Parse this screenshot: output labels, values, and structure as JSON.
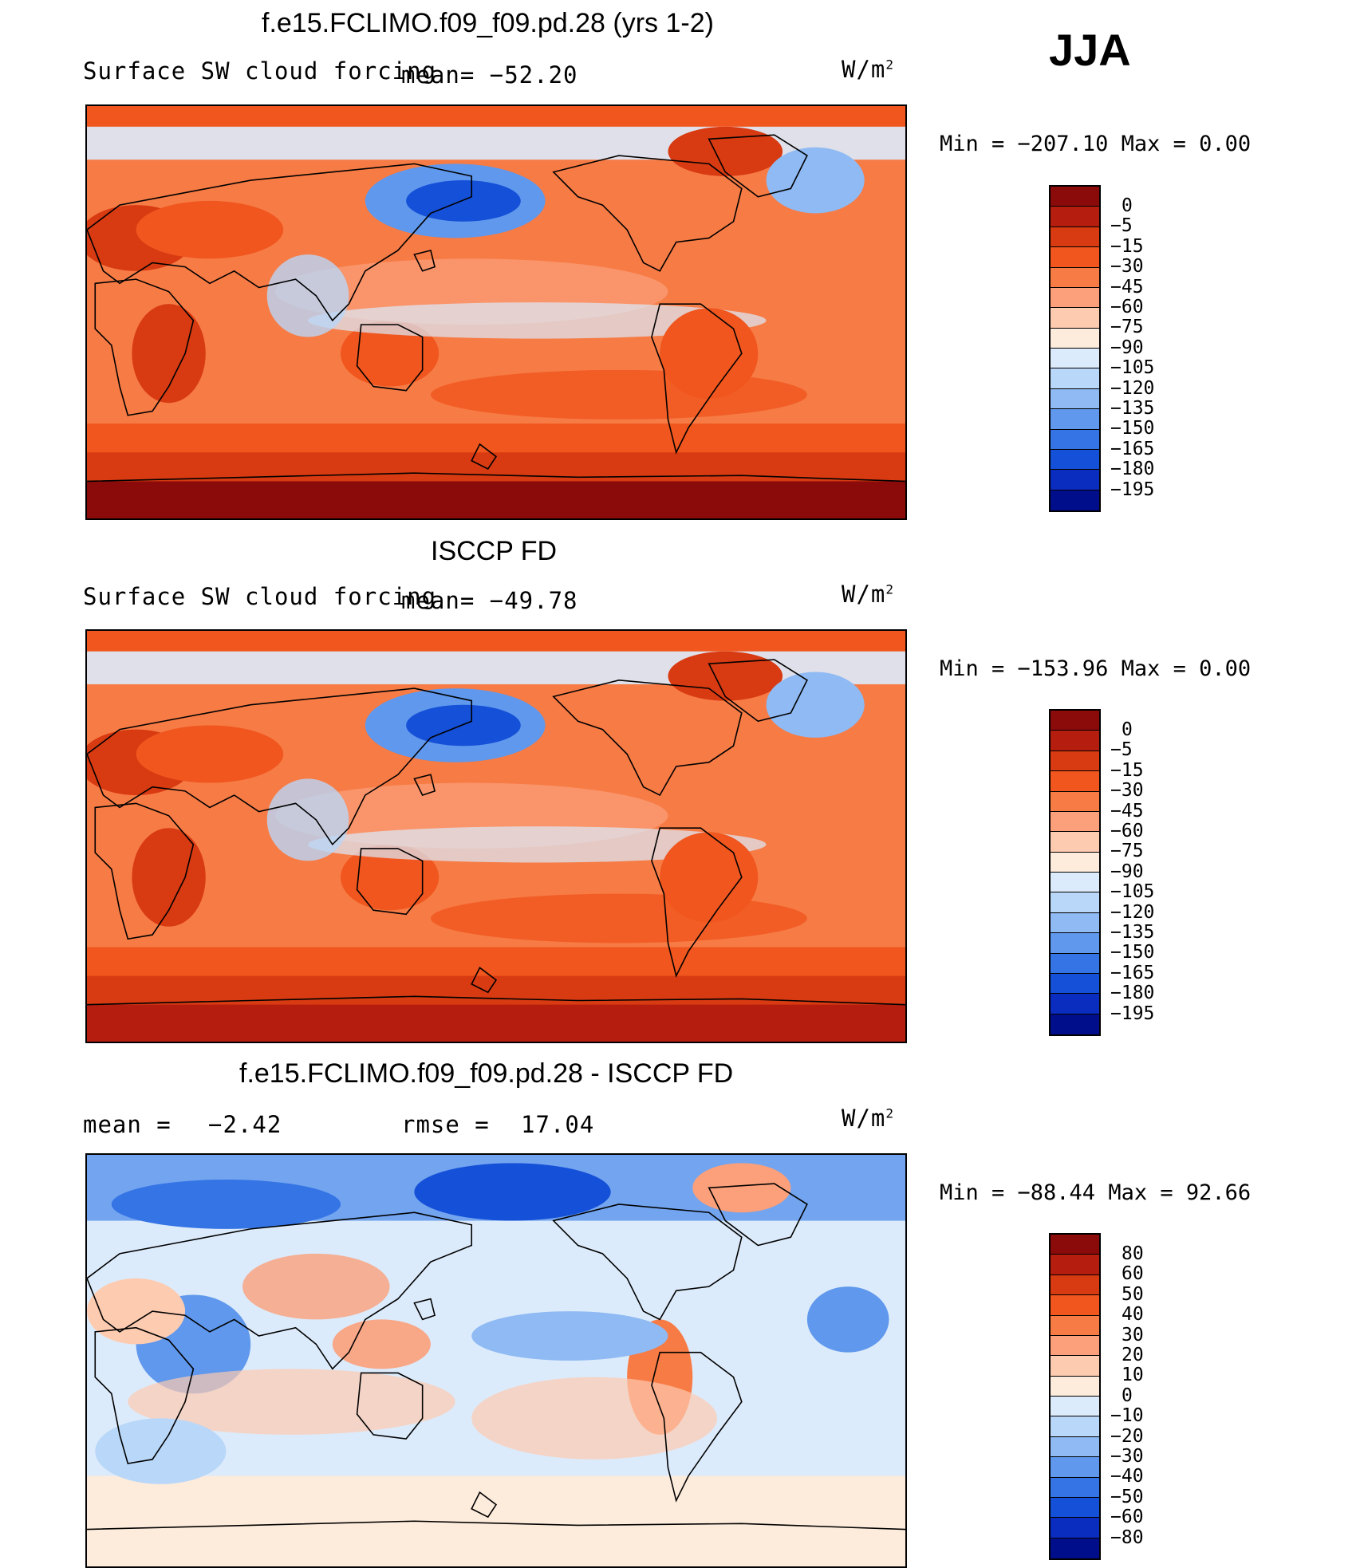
{
  "season": "JJA",
  "units": "W/m",
  "units_exp": "2",
  "panels": [
    {
      "title": "f.e15.FCLIMO.f09_f09.pd.28 (yrs 1-2)",
      "variable": "Surface SW cloud forcing",
      "mean_text": "mean= −52.20",
      "minmax": "Min = −207.10 Max =   0.00"
    },
    {
      "title": "ISCCP FD",
      "variable": "Surface SW cloud forcing",
      "mean_text": "mean= −49.78",
      "minmax": "Min = −153.96 Max =   0.00"
    },
    {
      "title": "f.e15.FCLIMO.f09_f09.pd.28 - ISCCP FD",
      "mean_label": "mean =",
      "mean_value": "−2.42",
      "rmse_label": "rmse =",
      "rmse_value": "17.04",
      "minmax": "Min = −88.44 Max =  92.66"
    }
  ],
  "chart_data": [
    {
      "type": "heatmap",
      "title": "f.e15.FCLIMO.f09_f09.pd.28 (yrs 1-2)",
      "subtitle": "Surface SW cloud forcing",
      "mean": -52.2,
      "min": -207.1,
      "max": 0.0,
      "contour_levels": [
        "0",
        "−5",
        "−15",
        "−30",
        "−45",
        "−60",
        "−75",
        "−90",
        "−105",
        "−120",
        "−135",
        "−150",
        "−165",
        "−180",
        "−195"
      ],
      "colors": [
        "#8b0a0a",
        "#b51d0e",
        "#d83a12",
        "#f0561e",
        "#f77b45",
        "#fba07a",
        "#fdcbb0",
        "#fdebdc",
        "#dcebfb",
        "#b9d7f8",
        "#8fbaf3",
        "#5f98ec",
        "#3574e5",
        "#1550d8",
        "#0a2cbf",
        "#000e8c"
      ]
    },
    {
      "type": "heatmap",
      "title": "ISCCP FD",
      "subtitle": "Surface SW cloud forcing",
      "mean": -49.78,
      "min": -153.96,
      "max": 0.0,
      "contour_levels": [
        "0",
        "−5",
        "−15",
        "−30",
        "−45",
        "−60",
        "−75",
        "−90",
        "−105",
        "−120",
        "−135",
        "−150",
        "−165",
        "−180",
        "−195"
      ],
      "colors": [
        "#8b0a0a",
        "#b51d0e",
        "#d83a12",
        "#f0561e",
        "#f77b45",
        "#fba07a",
        "#fdcbb0",
        "#fdebdc",
        "#dcebfb",
        "#b9d7f8",
        "#8fbaf3",
        "#5f98ec",
        "#3574e5",
        "#1550d8",
        "#0a2cbf",
        "#000e8c"
      ]
    },
    {
      "type": "heatmap",
      "title": "f.e15.FCLIMO.f09_f09.pd.28 - ISCCP FD",
      "mean": -2.42,
      "rmse": 17.04,
      "min": -88.44,
      "max": 92.66,
      "contour_levels": [
        "80",
        "60",
        "50",
        "40",
        "30",
        "20",
        "10",
        "0",
        "−10",
        "−20",
        "−30",
        "−40",
        "−50",
        "−60",
        "−80"
      ],
      "colors": [
        "#8b0a0a",
        "#b51d0e",
        "#d83a12",
        "#f0561e",
        "#f77b45",
        "#fba07a",
        "#fdcbb0",
        "#fdebdc",
        "#dcebfb",
        "#b9d7f8",
        "#8fbaf3",
        "#5f98ec",
        "#3574e5",
        "#1550d8",
        "#0a2cbf",
        "#000e8c"
      ]
    }
  ]
}
